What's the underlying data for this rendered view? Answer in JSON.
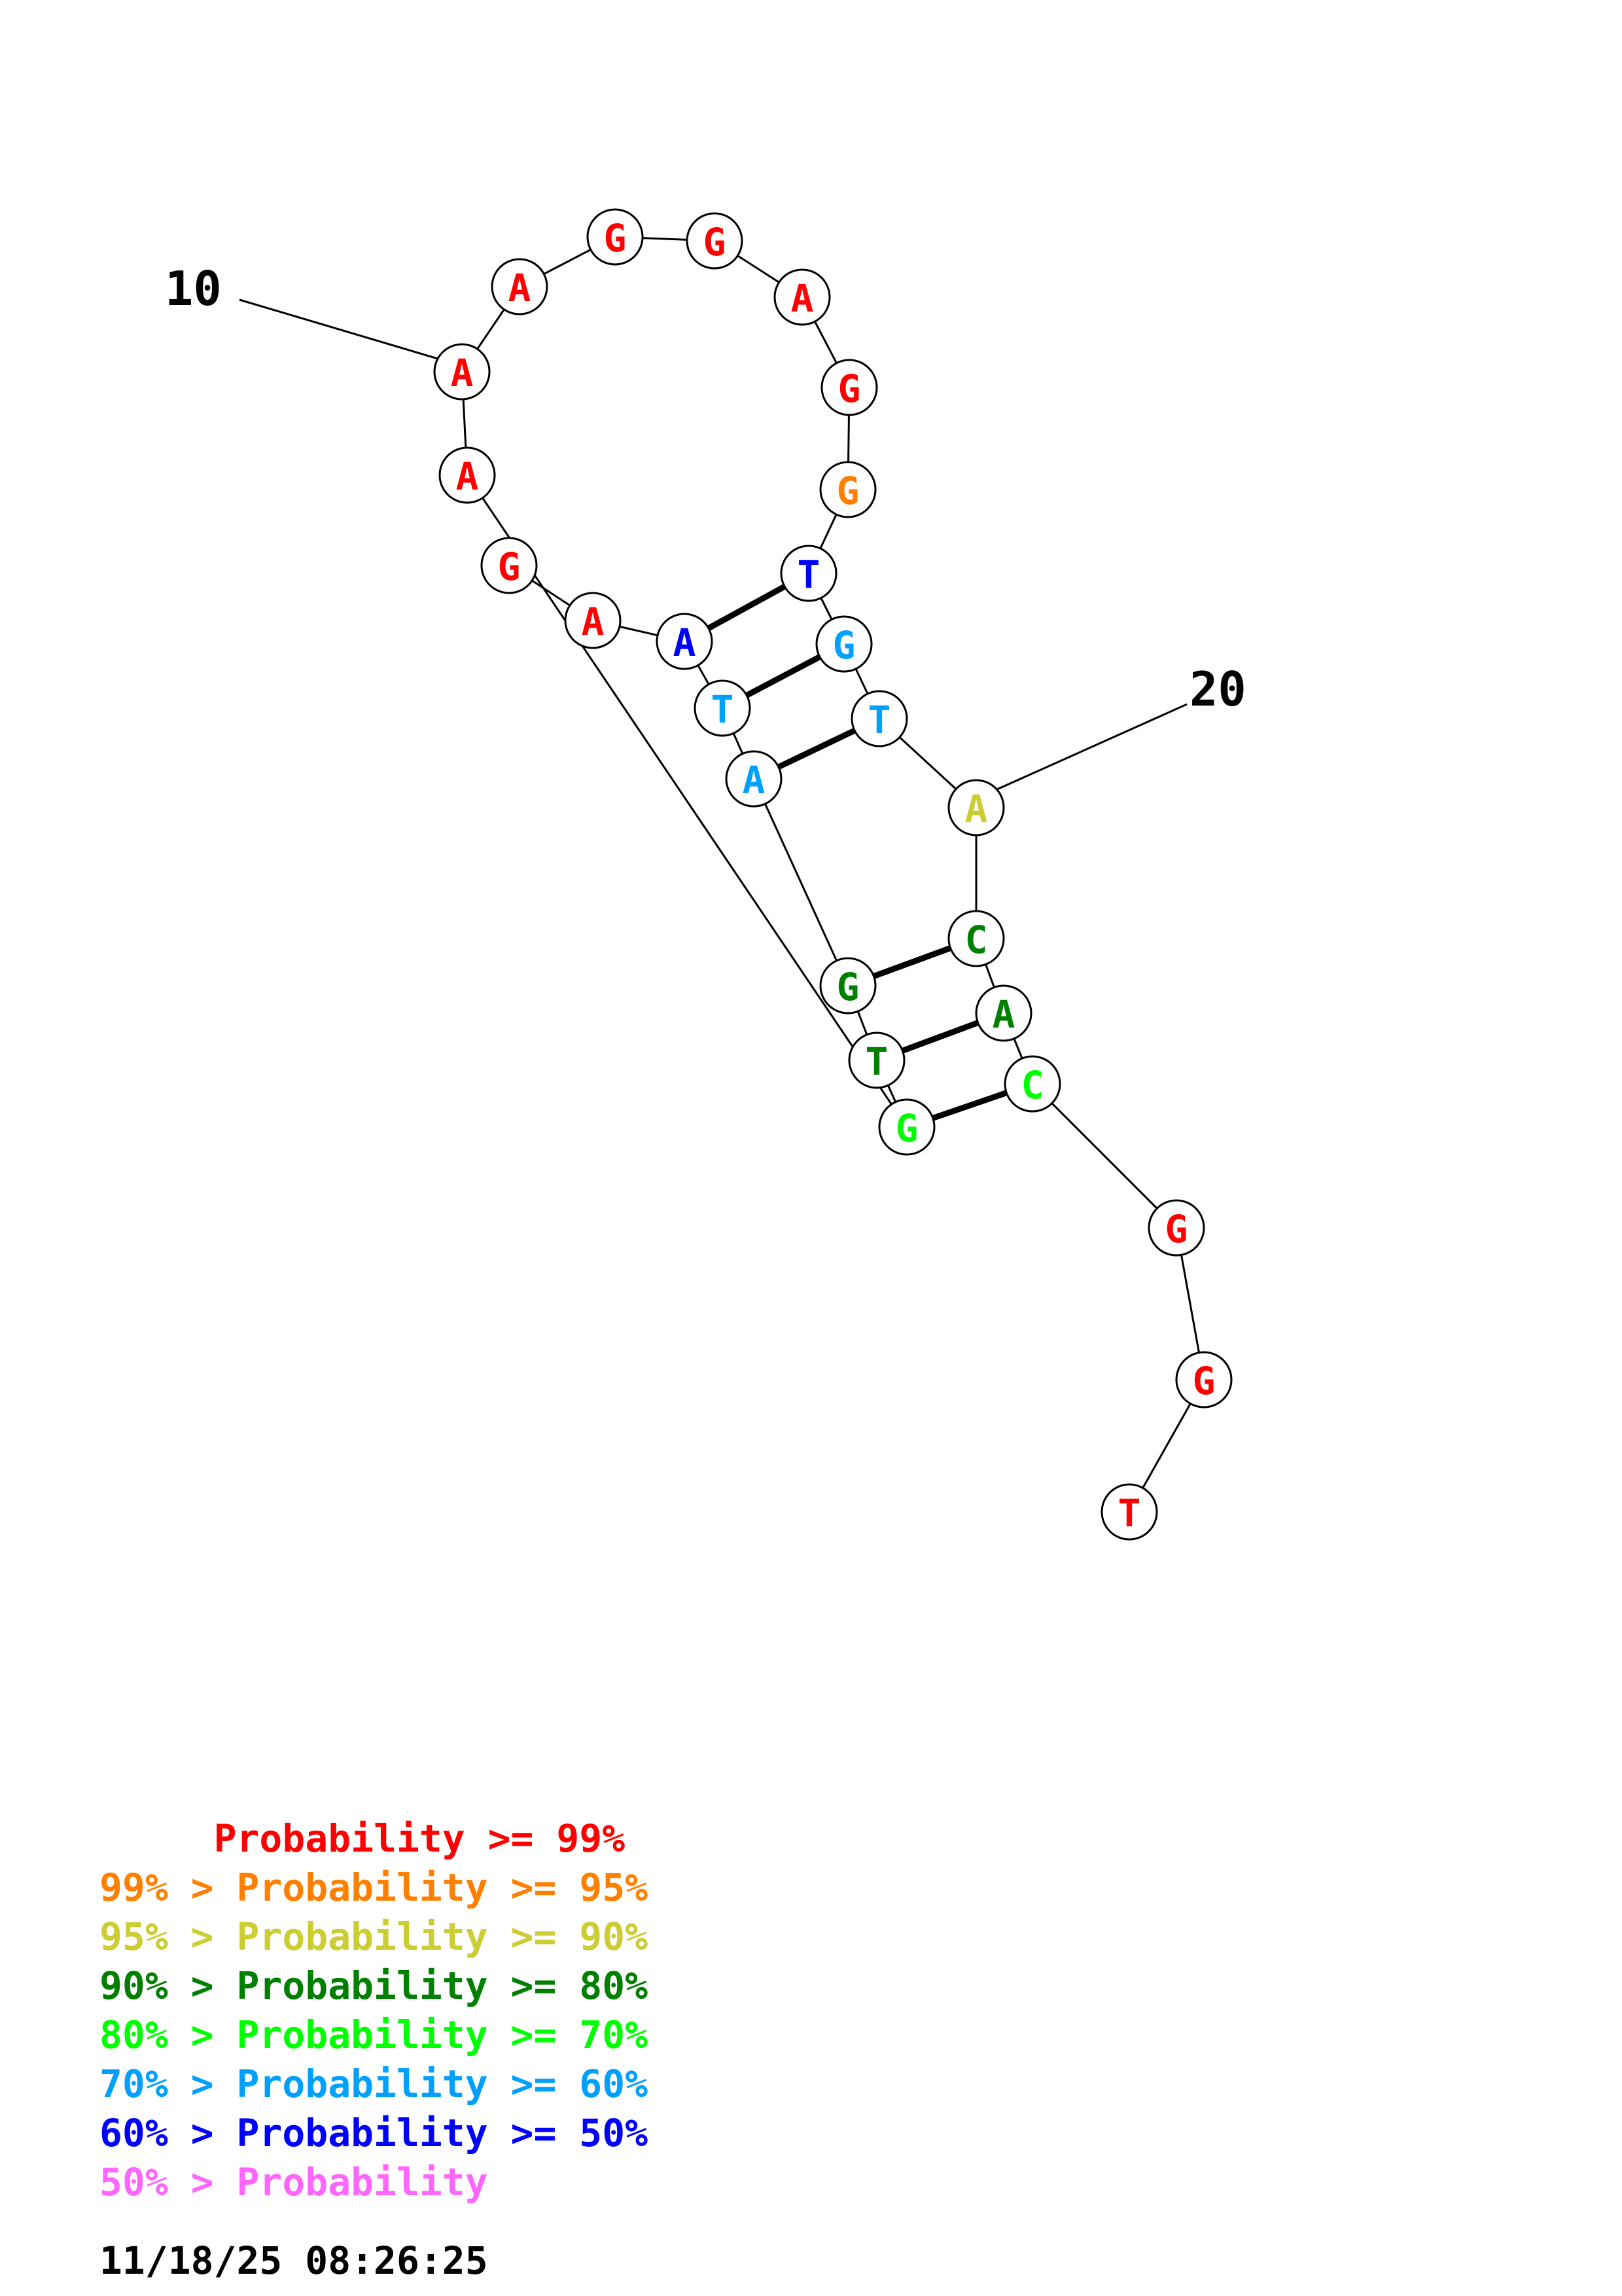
{
  "colors": {
    "p99": "#ff0000",
    "p95": "#ff8000",
    "p90": "#cccc33",
    "p80": "#008000",
    "p70": "#00ff00",
    "p60": "#00a0ff",
    "p50": "#0000ff",
    "plow": "#ff66ff"
  },
  "nucleotides": [
    {
      "base": "G",
      "color": "#ff0000"
    },
    {
      "base": "A",
      "color": "#ff0000"
    },
    {
      "base": "A",
      "color": "#0000ff"
    },
    {
      "base": "T",
      "color": "#00a0ff"
    },
    {
      "base": "A",
      "color": "#00a0ff"
    },
    {
      "base": "G",
      "color": "#008000"
    },
    {
      "base": "T",
      "color": "#008000"
    },
    {
      "base": "G",
      "color": "#00ff00"
    },
    {
      "base": "A",
      "color": "#ff0000"
    },
    {
      "base": "A",
      "color": "#ff0000"
    },
    {
      "base": "A",
      "color": "#ff0000"
    },
    {
      "base": "G",
      "color": "#ff0000"
    },
    {
      "base": "G",
      "color": "#ff0000"
    },
    {
      "base": "A",
      "color": "#ff0000"
    },
    {
      "base": "G",
      "color": "#ff0000"
    },
    {
      "base": "G",
      "color": "#ff8000"
    },
    {
      "base": "T",
      "color": "#0000ff"
    },
    {
      "base": "G",
      "color": "#00a0ff"
    },
    {
      "base": "T",
      "color": "#00a0ff"
    },
    {
      "base": "A",
      "color": "#cccc33"
    },
    {
      "base": "C",
      "color": "#008000"
    },
    {
      "base": "A",
      "color": "#008000"
    },
    {
      "base": "C",
      "color": "#00ff00"
    },
    {
      "base": "G",
      "color": "#ff0000"
    },
    {
      "base": "G",
      "color": "#ff0000"
    },
    {
      "base": "T",
      "color": "#ff0000"
    }
  ],
  "position_labels": {
    "label_10": "10",
    "label_20": "20"
  },
  "legend": [
    {
      "text": "     Probability >= 99%",
      "color": "#ff0000"
    },
    {
      "text": "99% > Probability >= 95%",
      "color": "#ff8000"
    },
    {
      "text": "95% > Probability >= 90%",
      "color": "#cccc33"
    },
    {
      "text": "90% > Probability >= 80%",
      "color": "#008000"
    },
    {
      "text": "80% > Probability >= 70%",
      "color": "#00ff00"
    },
    {
      "text": "70% > Probability >= 60%",
      "color": "#00a0ff"
    },
    {
      "text": "60% > Probability >= 50%",
      "color": "#0000ff"
    },
    {
      "text": "50% > Probability",
      "color": "#ff66ff"
    }
  ],
  "timestamp": "11/18/25 08:26:25"
}
